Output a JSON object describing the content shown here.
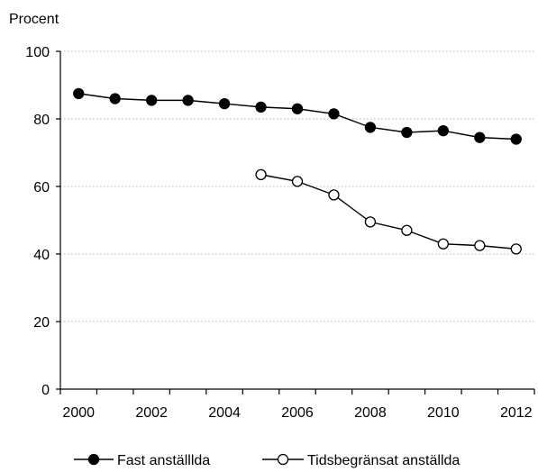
{
  "chart_data": {
    "type": "line",
    "ylabel": "Procent",
    "ylim": [
      0,
      100
    ],
    "yticks": [
      0,
      20,
      40,
      60,
      80,
      100
    ],
    "xlim": [
      2000,
      2012
    ],
    "xticks": [
      2000,
      2002,
      2004,
      2006,
      2008,
      2010,
      2012
    ],
    "grid": "horizontal-dotted",
    "legend_position": "bottom",
    "series": [
      {
        "name": "Fast anställlda",
        "marker": "filled",
        "color": "#000000",
        "x": [
          2000,
          2001,
          2002,
          2003,
          2004,
          2005,
          2006,
          2007,
          2008,
          2009,
          2010,
          2011,
          2012
        ],
        "values": [
          87.5,
          86.0,
          85.5,
          85.5,
          84.5,
          83.5,
          83.0,
          81.5,
          77.5,
          76.0,
          76.5,
          74.5,
          74.0
        ]
      },
      {
        "name": "Tidsbegränsat anställda",
        "marker": "open",
        "color": "#000000",
        "x": [
          2005,
          2006,
          2007,
          2008,
          2009,
          2010,
          2011,
          2012
        ],
        "values": [
          63.5,
          61.5,
          57.5,
          49.5,
          47.0,
          43.0,
          42.5,
          41.5
        ]
      }
    ]
  }
}
